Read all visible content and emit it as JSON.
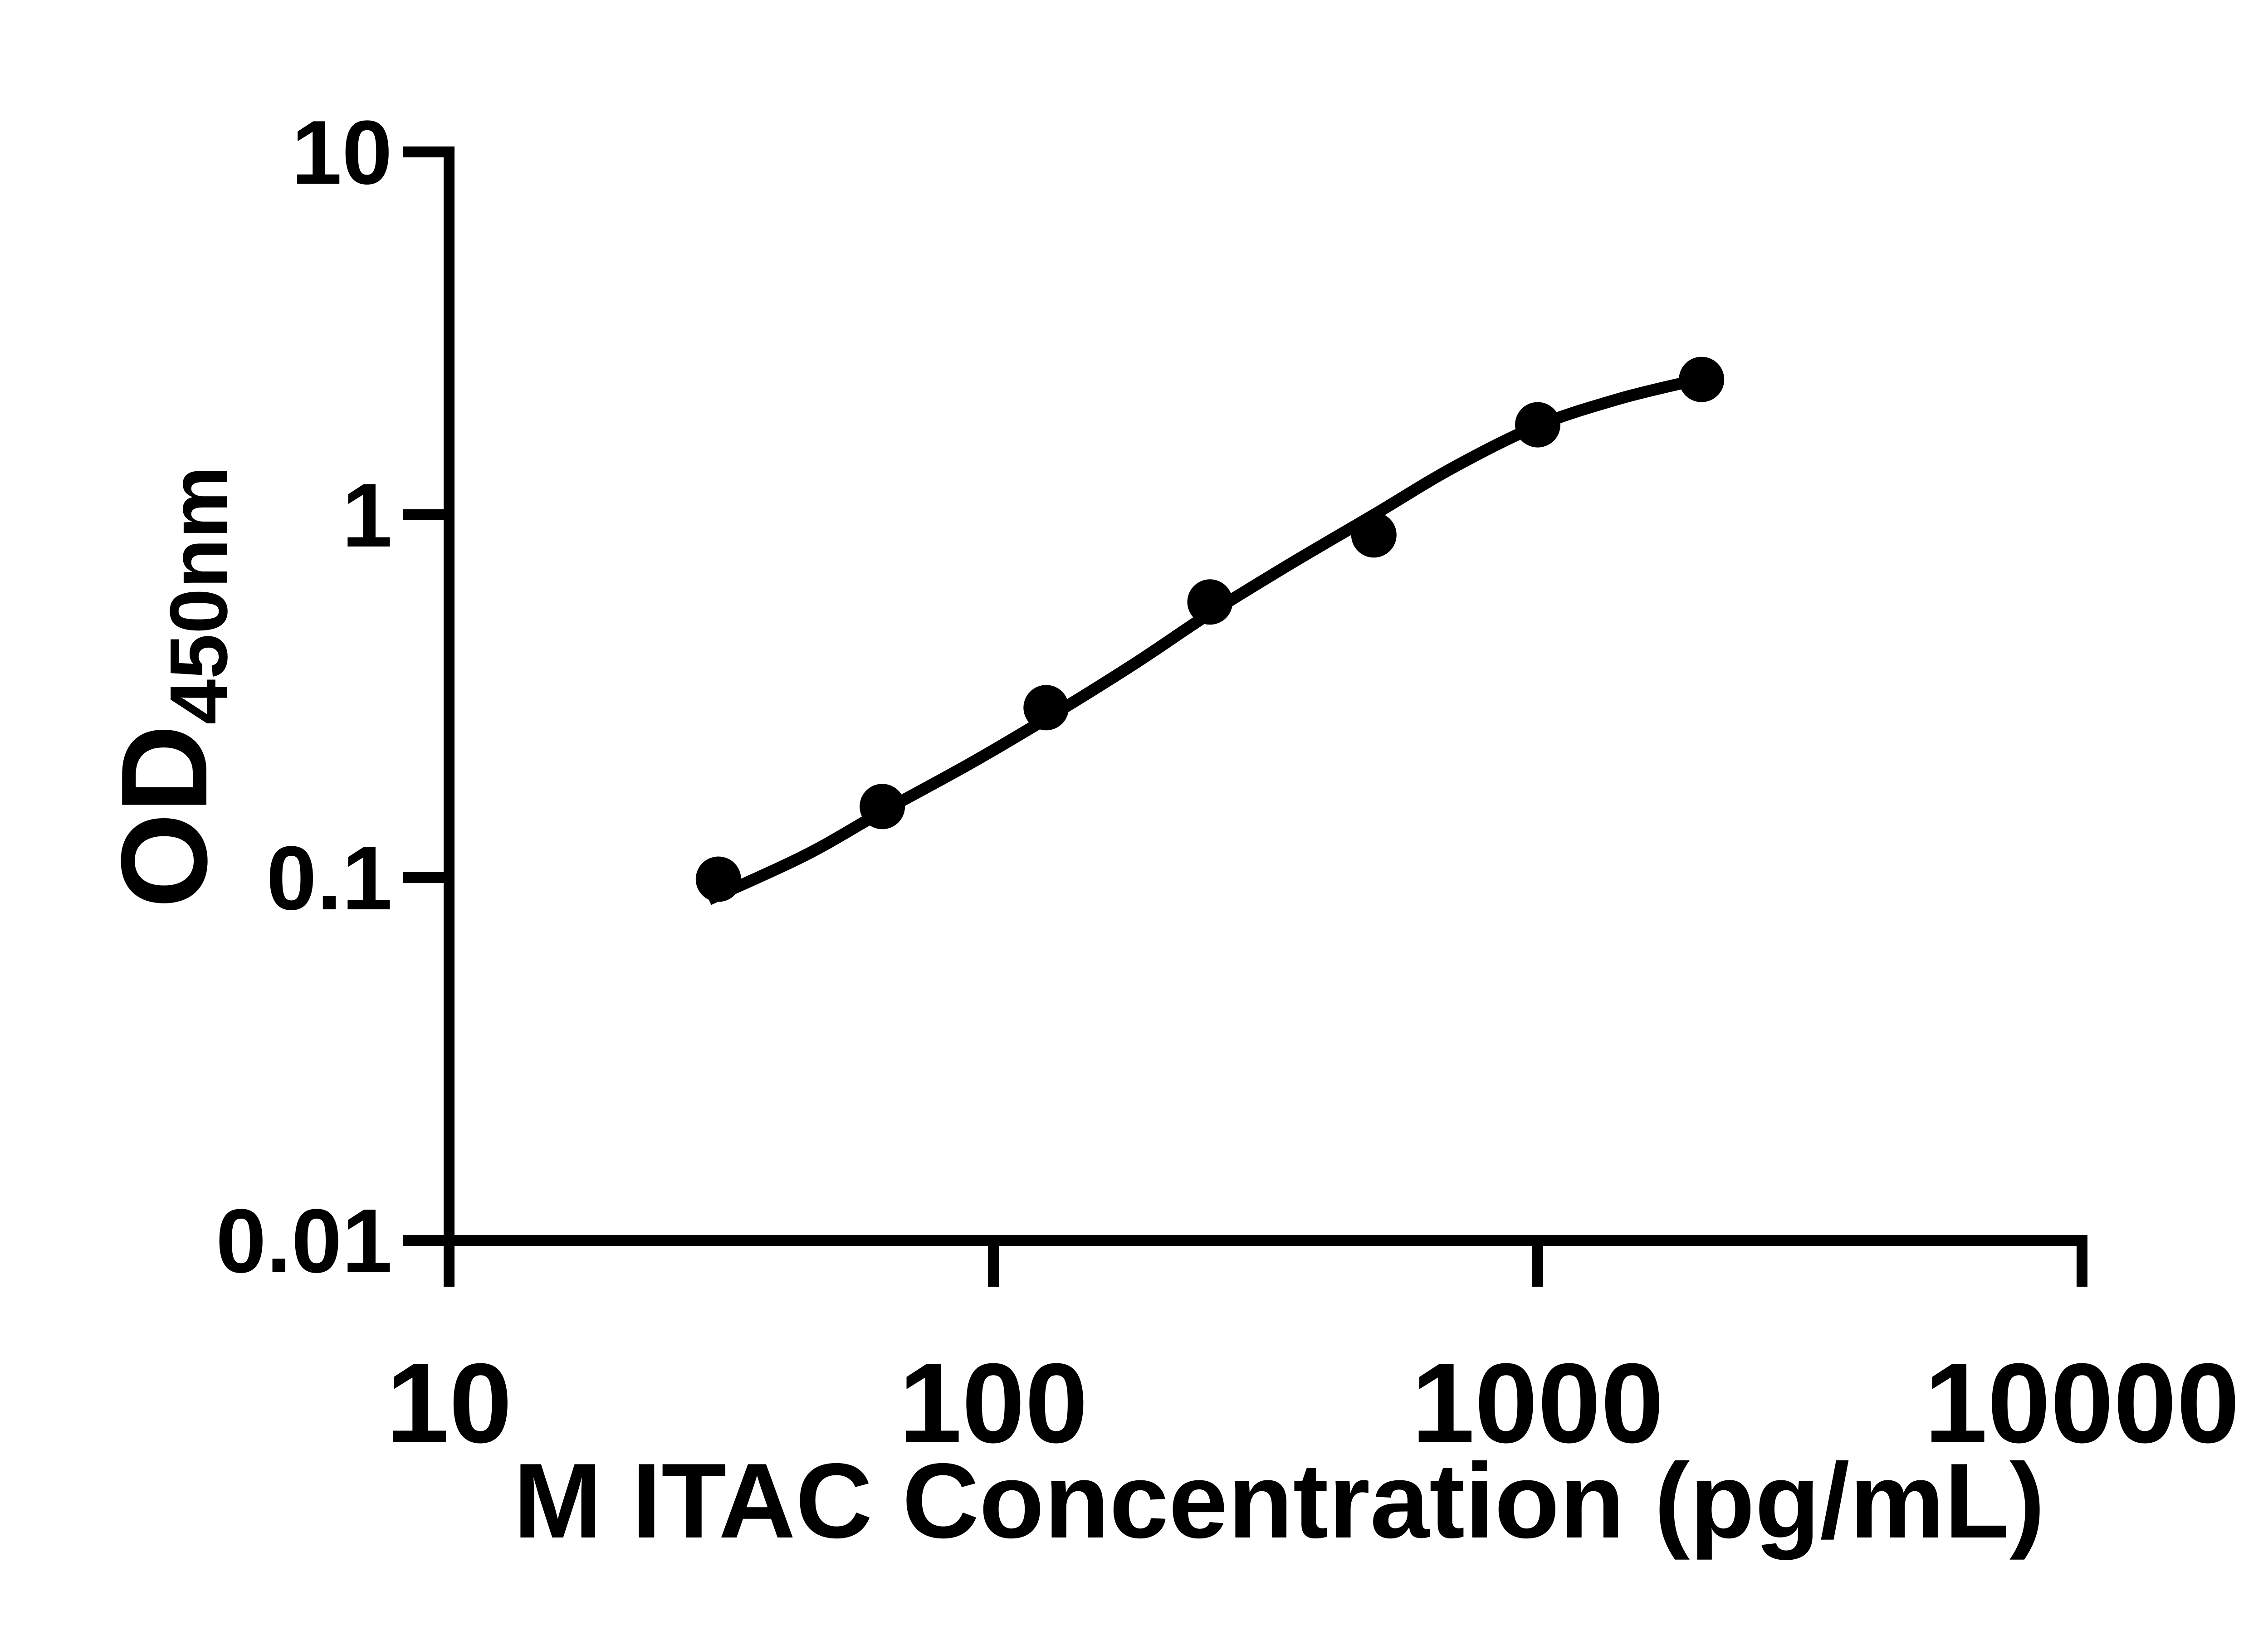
{
  "labels": {
    "x_title": "M ITAC Concentration (pg/mL)",
    "y_title_main": "OD",
    "y_title_sub": "450nm"
  },
  "axes": {
    "x_tick_labels": [
      "10",
      "100",
      "1000",
      "10000"
    ],
    "y_tick_labels": [
      "10",
      "1",
      "0.1",
      "0.01"
    ]
  },
  "colors": {
    "foreground": "#000000",
    "background": "#ffffff"
  },
  "chart_data": {
    "type": "scatter",
    "title": "",
    "xlabel": "M ITAC Concentration (pg/mL)",
    "ylabel": "OD450nm",
    "x_scale": "log10",
    "y_scale": "log10",
    "xlim": [
      10,
      10000
    ],
    "ylim": [
      0.01,
      10
    ],
    "x_ticks": [
      10,
      100,
      1000,
      10000
    ],
    "y_ticks": [
      0.01,
      0.1,
      1,
      10
    ],
    "grid": false,
    "legend": false,
    "marker": {
      "shape": "circle",
      "color": "#000000",
      "radius_px": 50
    },
    "line_color": "#000000",
    "points": [
      {
        "x": 31.25,
        "y": 0.099
      },
      {
        "x": 62.5,
        "y": 0.157
      },
      {
        "x": 125,
        "y": 0.294
      },
      {
        "x": 250,
        "y": 0.575
      },
      {
        "x": 500,
        "y": 0.88
      },
      {
        "x": 1000,
        "y": 1.77
      },
      {
        "x": 2000,
        "y": 2.36
      }
    ],
    "fit_curve_anchors": [
      [
        30,
        0.087
      ],
      [
        45,
        0.115
      ],
      [
        62.5,
        0.152
      ],
      [
        90,
        0.205
      ],
      [
        125,
        0.274
      ],
      [
        180,
        0.385
      ],
      [
        250,
        0.535
      ],
      [
        350,
        0.73
      ],
      [
        500,
        1.0
      ],
      [
        700,
        1.35
      ],
      [
        1000,
        1.76
      ],
      [
        1400,
        2.08
      ],
      [
        1830,
        2.3
      ]
    ]
  }
}
